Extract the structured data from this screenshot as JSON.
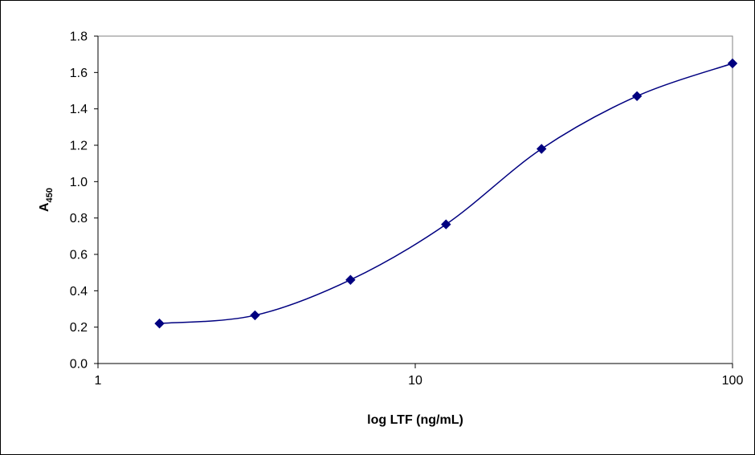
{
  "chart_data": {
    "type": "scatter",
    "title": "",
    "xlabel": "log LTF (ng/mL)",
    "ylabel": {
      "main": "A",
      "subscript": "450"
    },
    "x_scale": "log",
    "xlim": [
      1,
      100
    ],
    "ylim": [
      0,
      1.8
    ],
    "x_ticks": [
      "1",
      "10",
      "100"
    ],
    "y_ticks": [
      "0.0",
      "0.2",
      "0.4",
      "0.6",
      "0.8",
      "1.0",
      "1.2",
      "1.4",
      "1.6",
      "1.8"
    ],
    "grid": false,
    "legend": "none",
    "series": [
      {
        "x": [
          1.5625,
          3.125,
          6.25,
          12.5,
          25,
          50,
          100
        ],
        "y": [
          0.22,
          0.265,
          0.46,
          0.765,
          1.18,
          1.47,
          1.65
        ],
        "color": "#000080",
        "marker": "diamond",
        "line": "smooth"
      }
    ]
  }
}
